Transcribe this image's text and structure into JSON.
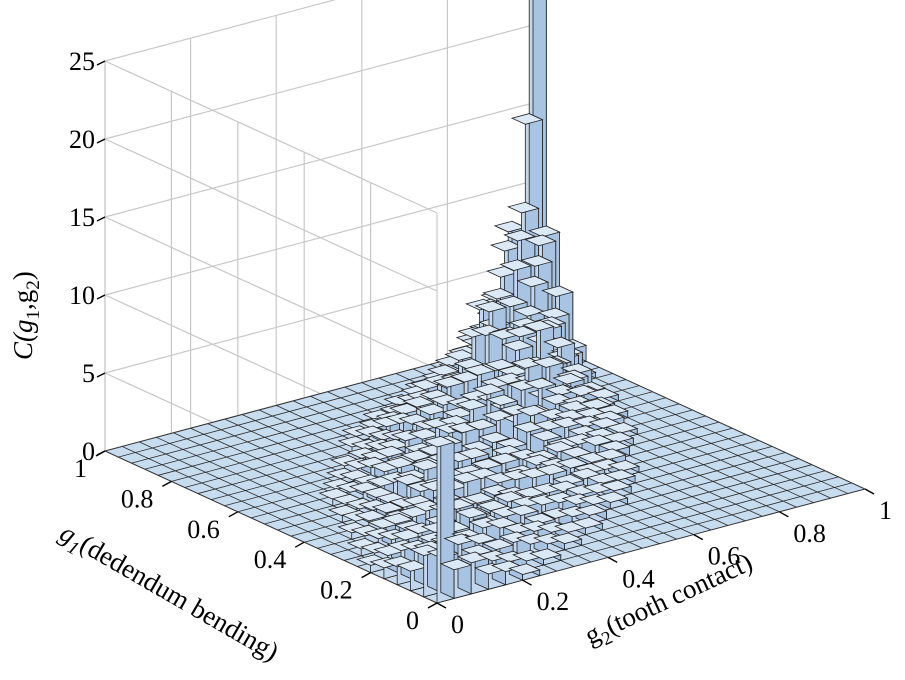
{
  "chart_data": {
    "type": "bar3d",
    "title": "",
    "xlabel": {
      "main": "g",
      "sub": "1",
      "rest": "(dedendum bending)"
    },
    "ylabel": {
      "main": "g",
      "sub": "2",
      "rest": "(tooth contact)"
    },
    "zlabel": {
      "main": "C(g",
      "sub1": "1",
      "mid": ",g",
      "sub2": "2",
      "end": ")"
    },
    "g1_range": [
      0,
      1
    ],
    "g2_range": [
      0,
      1
    ],
    "zlim": [
      0,
      25
    ],
    "bins_per_axis": 25,
    "g1_ticks": [
      "0",
      "0.2",
      "0.4",
      "0.6",
      "0.8",
      "1"
    ],
    "g2_ticks": [
      "0",
      "0.2",
      "0.4",
      "0.6",
      "0.8",
      "1"
    ],
    "z_ticks": [
      "0",
      "5",
      "10",
      "15",
      "20",
      "25"
    ],
    "bar_color": "#c8dcf0",
    "grid": true,
    "notable_bars": [
      {
        "g1": 0.02,
        "g2": 0.02,
        "value": 10
      },
      {
        "g1": 0.98,
        "g2": 0.98,
        "value": 24
      },
      {
        "g1": 0.94,
        "g2": 0.94,
        "value": 15
      },
      {
        "g1": 0.9,
        "g2": 0.9,
        "value": 10
      }
    ],
    "ridge_profile": [
      {
        "g": 0.1,
        "value": 2.5
      },
      {
        "g": 0.2,
        "value": 2.2
      },
      {
        "g": 0.3,
        "value": 2.4
      },
      {
        "g": 0.4,
        "value": 3.0
      },
      {
        "g": 0.5,
        "value": 3.6
      },
      {
        "g": 0.6,
        "value": 4.4
      },
      {
        "g": 0.7,
        "value": 5.4
      },
      {
        "g": 0.8,
        "value": 6.8
      },
      {
        "g": 0.86,
        "value": 8.5
      }
    ]
  }
}
